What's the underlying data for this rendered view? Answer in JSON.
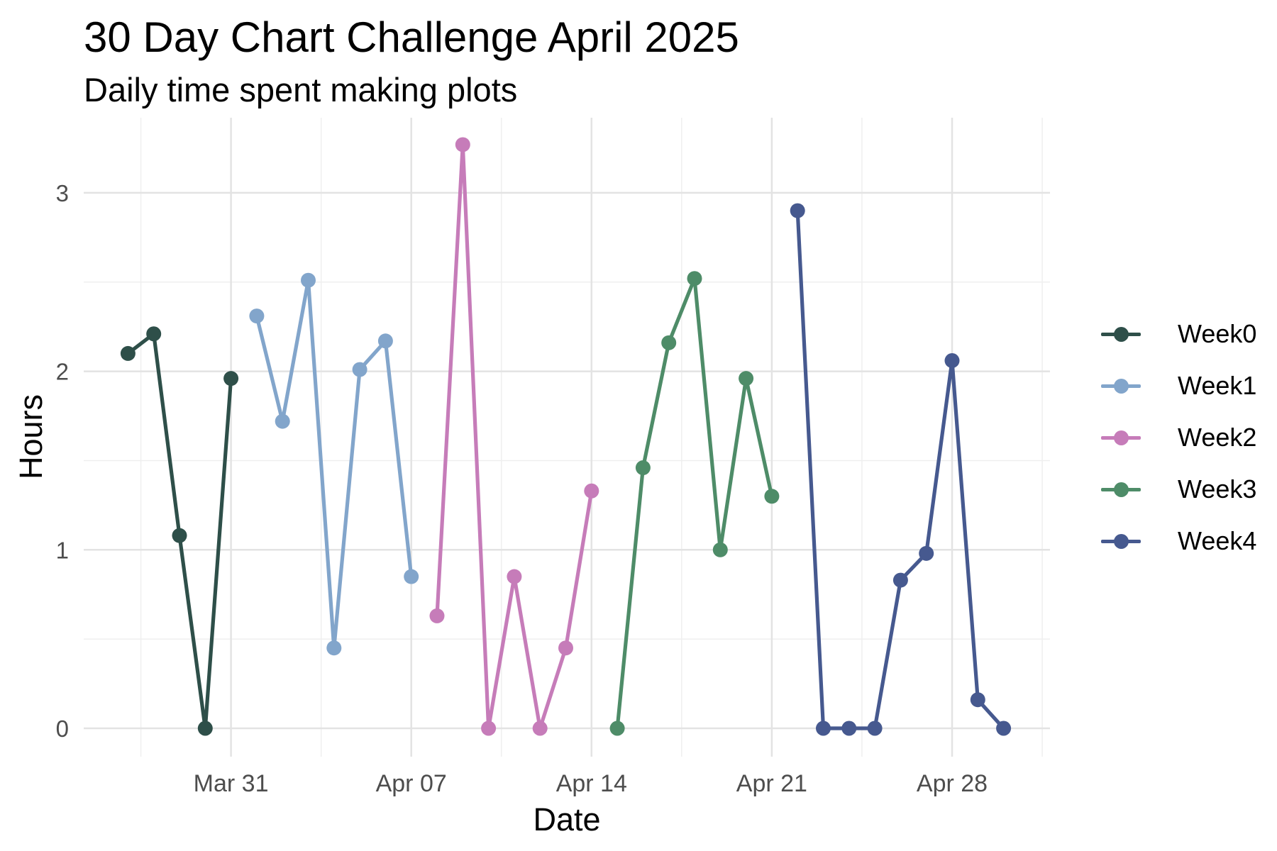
{
  "header": {
    "title": "30 Day Chart Challenge April 2025",
    "subtitle": "Daily time spent making plots"
  },
  "chart_data": {
    "type": "line",
    "title": "30 Day Chart Challenge April 2025",
    "subtitle": "Daily time spent making plots",
    "xlabel": "Date",
    "ylabel": "Hours",
    "grid": true,
    "legend_position": "right",
    "background_color": "#ffffff",
    "major_grid_color": "#e3e3e3",
    "minor_grid_color": "#efefef",
    "tick_label_color": "#4d4d4d",
    "text_color": "#000000",
    "ylim": [
      -0.16,
      3.43
    ],
    "y_ticks": [
      {
        "value": 0,
        "label": "0"
      },
      {
        "value": 1,
        "label": "1"
      },
      {
        "value": 2,
        "label": "2"
      },
      {
        "value": 3,
        "label": "3"
      }
    ],
    "y_minor_ticks": [
      0.5,
      1.5,
      2.5
    ],
    "x_ticks": [
      {
        "day": 4,
        "label": "Mar 31"
      },
      {
        "day": 11,
        "label": "Apr 07"
      },
      {
        "day": 18,
        "label": "Apr 14"
      },
      {
        "day": 25,
        "label": "Apr 21"
      },
      {
        "day": 32,
        "label": "Apr 28"
      }
    ],
    "x_minor_days": [
      0.5,
      7.5,
      14.5,
      21.5,
      28.5,
      35.5
    ],
    "series": [
      {
        "name": "Week0",
        "color": "#2e4f49",
        "dates": [
          "Mar 27",
          "Mar 28",
          "Mar 29",
          "Mar 30",
          "Mar 31"
        ],
        "days": [
          0,
          1,
          2,
          3,
          4
        ],
        "values": [
          2.1,
          2.21,
          1.08,
          0.0,
          1.96
        ]
      },
      {
        "name": "Week1",
        "color": "#82a5cb",
        "dates": [
          "Apr 01",
          "Apr 02",
          "Apr 03",
          "Apr 04",
          "Apr 05",
          "Apr 06",
          "Apr 07"
        ],
        "days": [
          5,
          6,
          7,
          8,
          9,
          10,
          11
        ],
        "values": [
          2.31,
          1.72,
          2.51,
          0.45,
          2.01,
          2.17,
          0.85
        ]
      },
      {
        "name": "Week2",
        "color": "#c67cb9",
        "dates": [
          "Apr 08",
          "Apr 09",
          "Apr 10",
          "Apr 11",
          "Apr 12",
          "Apr 13",
          "Apr 14"
        ],
        "days": [
          12,
          13,
          14,
          15,
          16,
          17,
          18
        ],
        "values": [
          0.63,
          3.27,
          0.0,
          0.85,
          0.0,
          0.45,
          1.33
        ]
      },
      {
        "name": "Week3",
        "color": "#4e8c68",
        "dates": [
          "Apr 15",
          "Apr 16",
          "Apr 17",
          "Apr 18",
          "Apr 19",
          "Apr 20",
          "Apr 21"
        ],
        "days": [
          19,
          20,
          21,
          22,
          23,
          24,
          25
        ],
        "values": [
          0.0,
          1.46,
          2.16,
          2.52,
          1.0,
          1.96,
          1.3
        ]
      },
      {
        "name": "Week4",
        "color": "#46598f",
        "dates": [
          "Apr 22",
          "Apr 23",
          "Apr 24",
          "Apr 25",
          "Apr 26",
          "Apr 27",
          "Apr 28",
          "Apr 29",
          "Apr 30"
        ],
        "days": [
          26,
          27,
          28,
          29,
          30,
          31,
          32,
          33,
          34
        ],
        "values": [
          2.9,
          0.0,
          0.0,
          0.0,
          0.83,
          0.98,
          2.06,
          0.16,
          0.0
        ]
      }
    ]
  }
}
